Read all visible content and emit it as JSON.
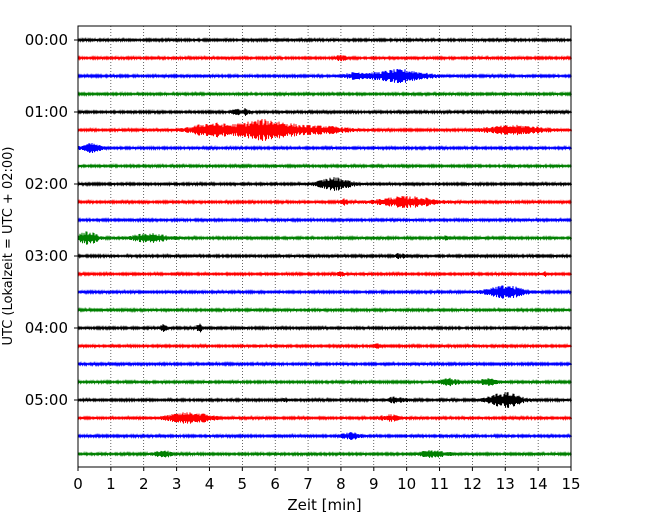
{
  "chart_data": {
    "type": "line",
    "title": "",
    "xlabel": "Zeit  [min]",
    "ylabel": "UTC (Lokalzeit = UTC + 02:00)",
    "xlim": [
      0,
      15
    ],
    "x_ticks": [
      "0",
      "1",
      "2",
      "3",
      "4",
      "5",
      "6",
      "7",
      "8",
      "9",
      "10",
      "11",
      "12",
      "13",
      "14",
      "15"
    ],
    "y_ticks": [
      "00:00",
      "01:00",
      "02:00",
      "03:00",
      "04:00",
      "05:00"
    ],
    "grid": "vertical dotted at each minute",
    "trace_interval_minutes": 15,
    "trace_colors": [
      "#000000",
      "#ff0000",
      "#0000ff",
      "#008000"
    ],
    "traces": [
      {
        "label": "00:00",
        "color": "black",
        "events": []
      },
      {
        "label": "00:15",
        "color": "red",
        "events": [
          {
            "t": 8.0,
            "amp": 3,
            "dur": 0.15
          }
        ]
      },
      {
        "label": "00:30",
        "color": "blue",
        "events": [
          {
            "t": 8.5,
            "amp": 3,
            "dur": 0.4
          },
          {
            "t": 9.8,
            "amp": 6,
            "dur": 0.8
          }
        ]
      },
      {
        "label": "00:45",
        "color": "green",
        "events": []
      },
      {
        "label": "01:00",
        "color": "black",
        "events": [
          {
            "t": 4.8,
            "amp": 4,
            "dur": 0.1
          },
          {
            "t": 5.1,
            "amp": 3,
            "dur": 0.1
          }
        ]
      },
      {
        "label": "01:15",
        "color": "red",
        "events": [
          {
            "t": 4.0,
            "amp": 6,
            "dur": 0.6
          },
          {
            "t": 5.7,
            "amp": 10,
            "dur": 1.0
          },
          {
            "t": 7.5,
            "amp": 3,
            "dur": 0.8
          },
          {
            "t": 13.3,
            "amp": 4,
            "dur": 1.0
          }
        ]
      },
      {
        "label": "01:30",
        "color": "blue",
        "events": [
          {
            "t": 0.4,
            "amp": 4,
            "dur": 0.3
          }
        ]
      },
      {
        "label": "01:45",
        "color": "green",
        "events": []
      },
      {
        "label": "02:00",
        "color": "black",
        "events": [
          {
            "t": 7.8,
            "amp": 6,
            "dur": 0.5
          }
        ]
      },
      {
        "label": "02:15",
        "color": "red",
        "events": [
          {
            "t": 8.1,
            "amp": 3,
            "dur": 0.1
          },
          {
            "t": 10.0,
            "amp": 5,
            "dur": 0.9
          }
        ]
      },
      {
        "label": "02:30",
        "color": "blue",
        "events": []
      },
      {
        "label": "02:45",
        "color": "green",
        "events": [
          {
            "t": 0.3,
            "amp": 6,
            "dur": 0.3
          },
          {
            "t": 2.2,
            "amp": 4,
            "dur": 0.6
          },
          {
            "t": 11.2,
            "amp": 2,
            "dur": 0.1
          }
        ]
      },
      {
        "label": "03:00",
        "color": "black",
        "events": [
          {
            "t": 9.8,
            "amp": 2,
            "dur": 0.2
          }
        ]
      },
      {
        "label": "03:15",
        "color": "red",
        "events": [
          {
            "t": 8.0,
            "amp": 2,
            "dur": 0.1
          },
          {
            "t": 14.2,
            "amp": 2,
            "dur": 0.1
          }
        ]
      },
      {
        "label": "03:30",
        "color": "blue",
        "events": [
          {
            "t": 13.0,
            "amp": 6,
            "dur": 0.6
          }
        ]
      },
      {
        "label": "03:45",
        "color": "green",
        "events": []
      },
      {
        "label": "04:00",
        "color": "black",
        "events": [
          {
            "t": 2.6,
            "amp": 3,
            "dur": 0.1
          },
          {
            "t": 3.7,
            "amp": 4,
            "dur": 0.1
          }
        ]
      },
      {
        "label": "04:15",
        "color": "red",
        "events": [
          {
            "t": 9.1,
            "amp": 3,
            "dur": 0.1
          }
        ]
      },
      {
        "label": "04:30",
        "color": "blue",
        "events": []
      },
      {
        "label": "04:45",
        "color": "green",
        "events": [
          {
            "t": 11.3,
            "amp": 3,
            "dur": 0.3
          },
          {
            "t": 12.5,
            "amp": 3,
            "dur": 0.3
          }
        ]
      },
      {
        "label": "05:00",
        "color": "black",
        "events": [
          {
            "t": 6.3,
            "amp": 2,
            "dur": 0.1
          },
          {
            "t": 9.7,
            "amp": 3,
            "dur": 0.3
          },
          {
            "t": 13.0,
            "amp": 7,
            "dur": 0.5
          }
        ]
      },
      {
        "label": "05:15",
        "color": "red",
        "events": [
          {
            "t": 3.4,
            "amp": 5,
            "dur": 0.7
          },
          {
            "t": 9.5,
            "amp": 3,
            "dur": 0.3
          }
        ]
      },
      {
        "label": "05:30",
        "color": "blue",
        "events": [
          {
            "t": 8.3,
            "amp": 3,
            "dur": 0.3
          }
        ]
      },
      {
        "label": "05:45",
        "color": "green",
        "events": [
          {
            "t": 2.6,
            "amp": 3,
            "dur": 0.3
          },
          {
            "t": 10.8,
            "amp": 3,
            "dur": 0.5
          }
        ]
      }
    ]
  }
}
